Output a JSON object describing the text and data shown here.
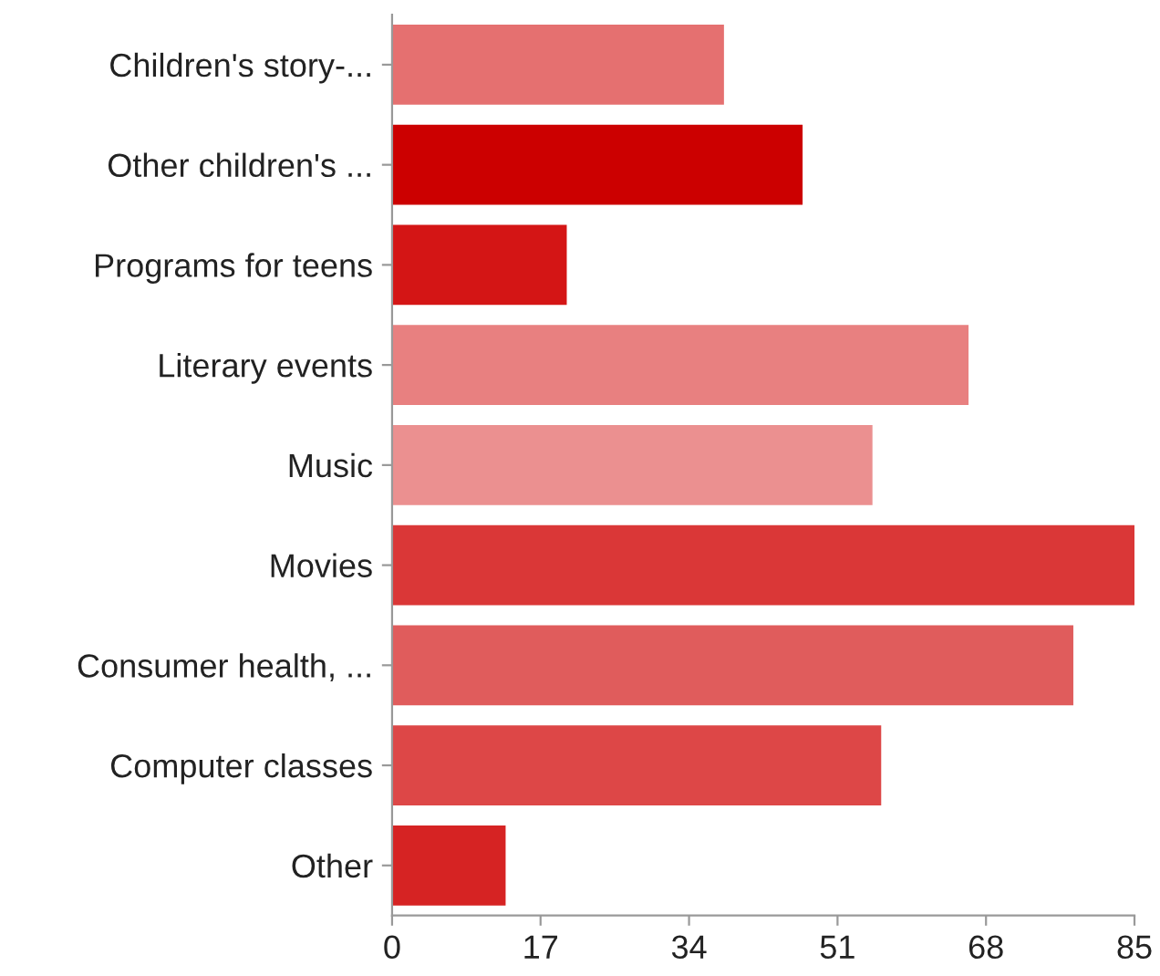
{
  "chart_data": {
    "type": "bar",
    "orientation": "horizontal",
    "categories": [
      "Children's story-...",
      "Other children's ...",
      "Programs for teens",
      "Literary events",
      "Music",
      "Movies",
      "Consumer health, ...",
      "Computer classes",
      "Other"
    ],
    "values": [
      38,
      47,
      20,
      66,
      55,
      85,
      78,
      56,
      13
    ],
    "colors": [
      "#e57070",
      "#cc0000",
      "#d41515",
      "#e88080",
      "#eb9090",
      "#da3737",
      "#e05c5c",
      "#dd4747",
      "#d62323"
    ],
    "xlim": [
      0,
      85
    ],
    "xticks": [
      0,
      17,
      34,
      51,
      68,
      85
    ],
    "grid": false,
    "legend": false
  }
}
